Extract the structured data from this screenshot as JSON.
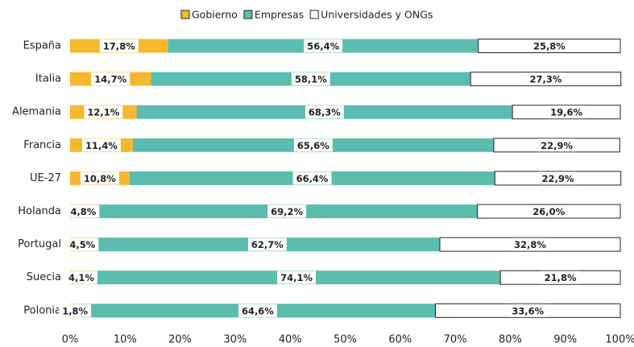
{
  "chart_data": {
    "type": "stacked-bar-horizontal",
    "categories": [
      "España",
      "Italia",
      "Alemania",
      "Francia",
      "UE-27",
      "Holanda",
      "Portugal",
      "Suecia",
      "Polonia"
    ],
    "series": [
      {
        "name": "Gobierno",
        "color": "#f5b82e",
        "values": [
          17.8,
          14.7,
          12.1,
          11.4,
          10.8,
          4.8,
          4.5,
          4.1,
          1.8
        ],
        "value_labels": [
          "17,8%",
          "14,7%",
          "12,1%",
          "11,4%",
          "10,8%",
          "4,8%",
          "4,5%",
          "4,1%",
          "1,8%"
        ]
      },
      {
        "name": "Empresas",
        "color": "#5bbcb0",
        "values": [
          56.4,
          58.1,
          68.3,
          65.6,
          66.4,
          69.2,
          62.7,
          74.1,
          64.6
        ],
        "value_labels": [
          "56,4%",
          "58,1%",
          "68,3%",
          "65,6%",
          "66,4%",
          "69,2%",
          "62,7%",
          "74,1%",
          "64,6%"
        ]
      },
      {
        "name": "Universidades y ONGs",
        "color": "#ffffff",
        "values": [
          25.8,
          27.3,
          19.6,
          22.9,
          22.9,
          26.0,
          32.8,
          21.8,
          33.6
        ],
        "value_labels": [
          "25,8%",
          "27,3%",
          "19,6%",
          "22,9%",
          "22,9%",
          "26,0%",
          "32,8%",
          "21,8%",
          "33,6%"
        ]
      }
    ],
    "xlim": [
      0,
      100
    ],
    "xticks": [
      {
        "value": 0,
        "label": "0%"
      },
      {
        "value": 10,
        "label": "10%"
      },
      {
        "value": 20,
        "label": "20%"
      },
      {
        "value": 30,
        "label": "30%"
      },
      {
        "value": 40,
        "label": "40%"
      },
      {
        "value": 50,
        "label": "50%"
      },
      {
        "value": 60,
        "label": "60%"
      },
      {
        "value": 70,
        "label": "70%"
      },
      {
        "value": 80,
        "label": "80%"
      },
      {
        "value": 90,
        "label": "90%"
      },
      {
        "value": 100,
        "label": "100%"
      }
    ],
    "legend": "top"
  }
}
